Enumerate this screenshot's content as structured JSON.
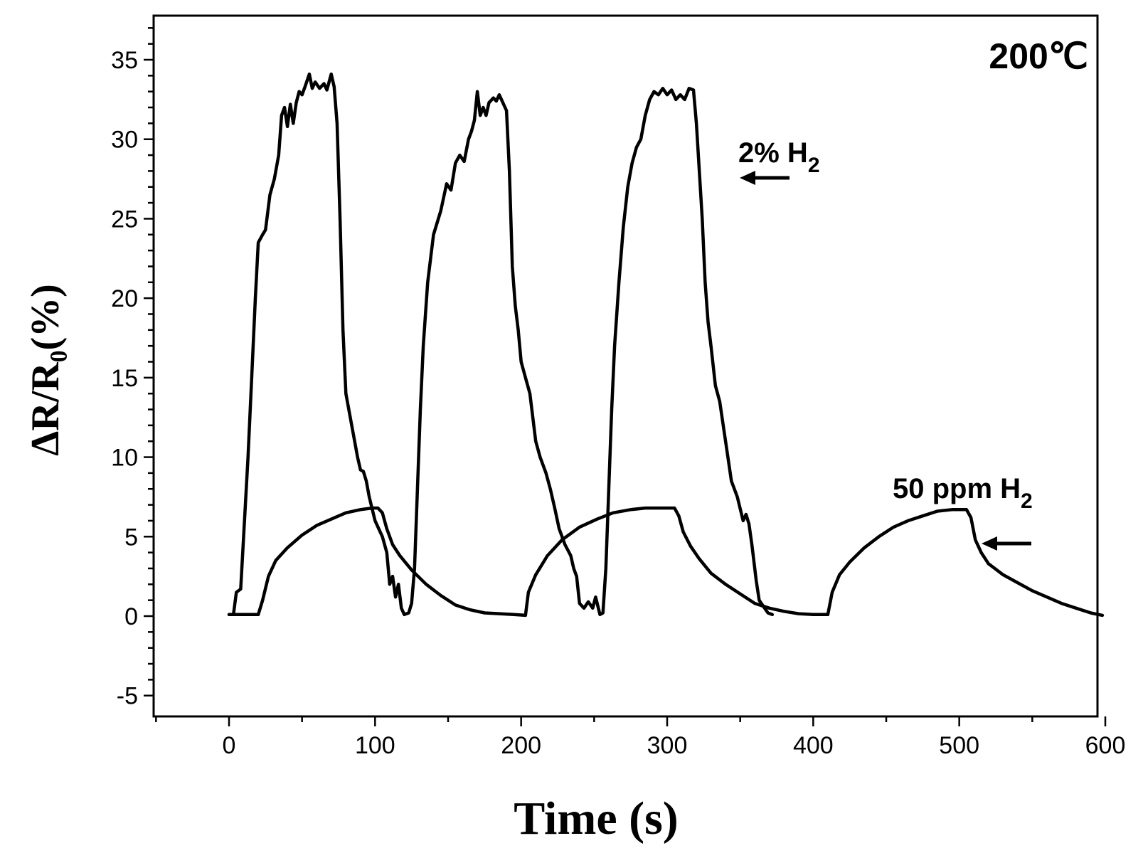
{
  "chart_data": {
    "type": "line",
    "title": "",
    "xlabel": "Time (s)",
    "ylabel": "ΔR/R₀(%)",
    "xlim": [
      -50,
      610
    ],
    "ylim": [
      -5,
      37
    ],
    "x_ticks": [
      0,
      100,
      200,
      300,
      400,
      500,
      600
    ],
    "x_tick_labels": [
      "0",
      "100",
      "200",
      "300",
      "400",
      "500",
      "600"
    ],
    "y_ticks": [
      -5,
      0,
      5,
      10,
      15,
      20,
      25,
      30,
      35
    ],
    "y_tick_labels": [
      "-5",
      "0",
      "5",
      "10",
      "15",
      "20",
      "25",
      "30",
      "35"
    ],
    "grid": false,
    "series": [
      {
        "name": "2% H2",
        "points": [
          [
            0,
            0.1
          ],
          [
            3,
            0.1
          ],
          [
            5,
            1.5
          ],
          [
            8,
            1.7
          ],
          [
            10,
            5
          ],
          [
            13,
            10
          ],
          [
            16,
            16
          ],
          [
            18,
            20
          ],
          [
            20,
            23.5
          ],
          [
            23,
            24
          ],
          [
            25,
            24.3
          ],
          [
            28,
            26.5
          ],
          [
            31,
            27.5
          ],
          [
            34,
            29
          ],
          [
            36,
            31.5
          ],
          [
            38,
            32
          ],
          [
            40,
            30.8
          ],
          [
            42,
            32.2
          ],
          [
            44,
            31
          ],
          [
            46,
            32.3
          ],
          [
            48,
            33
          ],
          [
            50,
            32.8
          ],
          [
            52,
            33.3
          ],
          [
            55,
            34.1
          ],
          [
            57,
            33.2
          ],
          [
            59,
            33.6
          ],
          [
            62,
            33.2
          ],
          [
            65,
            33.5
          ],
          [
            67,
            33.1
          ],
          [
            70,
            34.1
          ],
          [
            72,
            33.3
          ],
          [
            74,
            31
          ],
          [
            76,
            25
          ],
          [
            78,
            18
          ],
          [
            80,
            14
          ],
          [
            84,
            12
          ],
          [
            86,
            11
          ],
          [
            88,
            10
          ],
          [
            90,
            9.2
          ],
          [
            92,
            9.1
          ],
          [
            94,
            8.5
          ],
          [
            96,
            7.5
          ],
          [
            100,
            6
          ],
          [
            105,
            5
          ],
          [
            108,
            4
          ],
          [
            110,
            2
          ],
          [
            112,
            2.5
          ],
          [
            114,
            1.2
          ],
          [
            116,
            2
          ],
          [
            118,
            0.5
          ],
          [
            120,
            0.1
          ],
          [
            123,
            0.2
          ],
          [
            125,
            0.8
          ],
          [
            127,
            3
          ],
          [
            129,
            8
          ],
          [
            131,
            13
          ],
          [
            133,
            17
          ],
          [
            136,
            21
          ],
          [
            140,
            24
          ],
          [
            145,
            25.5
          ],
          [
            149,
            27.2
          ],
          [
            152,
            26.8
          ],
          [
            155,
            28.5
          ],
          [
            158,
            29
          ],
          [
            161,
            28.6
          ],
          [
            164,
            30
          ],
          [
            166,
            30.5
          ],
          [
            168,
            31.2
          ],
          [
            170,
            33
          ],
          [
            172,
            31.5
          ],
          [
            174,
            32
          ],
          [
            176,
            31.5
          ],
          [
            178,
            32.3
          ],
          [
            181,
            32.6
          ],
          [
            183,
            32.4
          ],
          [
            185,
            32.8
          ],
          [
            187,
            32.4
          ],
          [
            190,
            31.8
          ],
          [
            192,
            28
          ],
          [
            194,
            22
          ],
          [
            196,
            19.5
          ],
          [
            198,
            18
          ],
          [
            200,
            16
          ],
          [
            203,
            15
          ],
          [
            206,
            14
          ],
          [
            208,
            12.5
          ],
          [
            210,
            11
          ],
          [
            213,
            10
          ],
          [
            217,
            9
          ],
          [
            220,
            8
          ],
          [
            223,
            6.8
          ],
          [
            226,
            5.5
          ],
          [
            230,
            4.5
          ],
          [
            234,
            3.8
          ],
          [
            236,
            3
          ],
          [
            238,
            2.5
          ],
          [
            240,
            0.8
          ],
          [
            243,
            0.5
          ],
          [
            246,
            0.9
          ],
          [
            249,
            0.5
          ],
          [
            251,
            1.2
          ],
          [
            254,
            0.1
          ],
          [
            256,
            0.2
          ],
          [
            258,
            3
          ],
          [
            260,
            8
          ],
          [
            262,
            13
          ],
          [
            264,
            17
          ],
          [
            267,
            21
          ],
          [
            270,
            24.5
          ],
          [
            273,
            27
          ],
          [
            276,
            28.5
          ],
          [
            279,
            29.5
          ],
          [
            282,
            30
          ],
          [
            285,
            31.5
          ],
          [
            288,
            32.5
          ],
          [
            291,
            33
          ],
          [
            294,
            32.8
          ],
          [
            297,
            33.2
          ],
          [
            300,
            32.8
          ],
          [
            303,
            33.1
          ],
          [
            306,
            32.5
          ],
          [
            309,
            32.8
          ],
          [
            312,
            32.5
          ],
          [
            315,
            33.2
          ],
          [
            318,
            33.1
          ],
          [
            320,
            31
          ],
          [
            322,
            28
          ],
          [
            324,
            25
          ],
          [
            326,
            21
          ],
          [
            328,
            18.5
          ],
          [
            330,
            17
          ],
          [
            333,
            14.5
          ],
          [
            336,
            13.5
          ],
          [
            340,
            11
          ],
          [
            344,
            8.5
          ],
          [
            348,
            7.5
          ],
          [
            352,
            6
          ],
          [
            354,
            6.4
          ],
          [
            356,
            5.8
          ],
          [
            358,
            4.5
          ],
          [
            361,
            2.2
          ],
          [
            363,
            1
          ],
          [
            366,
            0.6
          ],
          [
            369,
            0.2
          ],
          [
            372,
            0.1
          ]
        ]
      },
      {
        "name": "50 ppm H2",
        "points": [
          [
            0,
            0.1
          ],
          [
            10,
            0.1
          ],
          [
            20,
            0.1
          ],
          [
            23,
            1
          ],
          [
            27,
            2.5
          ],
          [
            32,
            3.5
          ],
          [
            40,
            4.3
          ],
          [
            50,
            5.1
          ],
          [
            60,
            5.7
          ],
          [
            70,
            6.1
          ],
          [
            80,
            6.5
          ],
          [
            90,
            6.7
          ],
          [
            98,
            6.8
          ],
          [
            102,
            6.8
          ],
          [
            105,
            6.5
          ],
          [
            108,
            5.5
          ],
          [
            112,
            4.5
          ],
          [
            117,
            3.8
          ],
          [
            125,
            2.9
          ],
          [
            135,
            2.0
          ],
          [
            145,
            1.3
          ],
          [
            155,
            0.7
          ],
          [
            165,
            0.4
          ],
          [
            175,
            0.2
          ],
          [
            185,
            0.15
          ],
          [
            195,
            0.1
          ],
          [
            203,
            0.05
          ],
          [
            205,
            1.5
          ],
          [
            210,
            2.6
          ],
          [
            218,
            3.8
          ],
          [
            228,
            4.8
          ],
          [
            240,
            5.6
          ],
          [
            252,
            6.1
          ],
          [
            263,
            6.5
          ],
          [
            275,
            6.7
          ],
          [
            285,
            6.8
          ],
          [
            295,
            6.8
          ],
          [
            305,
            6.8
          ],
          [
            308,
            6.3
          ],
          [
            311,
            5.3
          ],
          [
            316,
            4.4
          ],
          [
            322,
            3.6
          ],
          [
            330,
            2.7
          ],
          [
            340,
            2.0
          ],
          [
            350,
            1.4
          ],
          [
            360,
            0.8
          ],
          [
            370,
            0.5
          ],
          [
            380,
            0.3
          ],
          [
            390,
            0.15
          ],
          [
            400,
            0.1
          ],
          [
            410,
            0.1
          ],
          [
            413,
            1.5
          ],
          [
            418,
            2.6
          ],
          [
            425,
            3.4
          ],
          [
            435,
            4.3
          ],
          [
            445,
            5.0
          ],
          [
            455,
            5.6
          ],
          [
            465,
            6.0
          ],
          [
            475,
            6.3
          ],
          [
            485,
            6.6
          ],
          [
            495,
            6.7
          ],
          [
            505,
            6.7
          ],
          [
            508,
            6.2
          ],
          [
            511,
            4.8
          ],
          [
            515,
            4.0
          ],
          [
            520,
            3.3
          ],
          [
            530,
            2.6
          ],
          [
            540,
            2.1
          ],
          [
            550,
            1.6
          ],
          [
            560,
            1.2
          ],
          [
            570,
            0.8
          ],
          [
            580,
            0.5
          ],
          [
            590,
            0.2
          ],
          [
            598,
            0.05
          ]
        ]
      }
    ],
    "annotations": {
      "temperature": "200℃",
      "label_2pct": "2% H",
      "label_2pct_sub": "2",
      "label_50ppm": "50 ppm H",
      "label_50ppm_sub": "2"
    }
  }
}
